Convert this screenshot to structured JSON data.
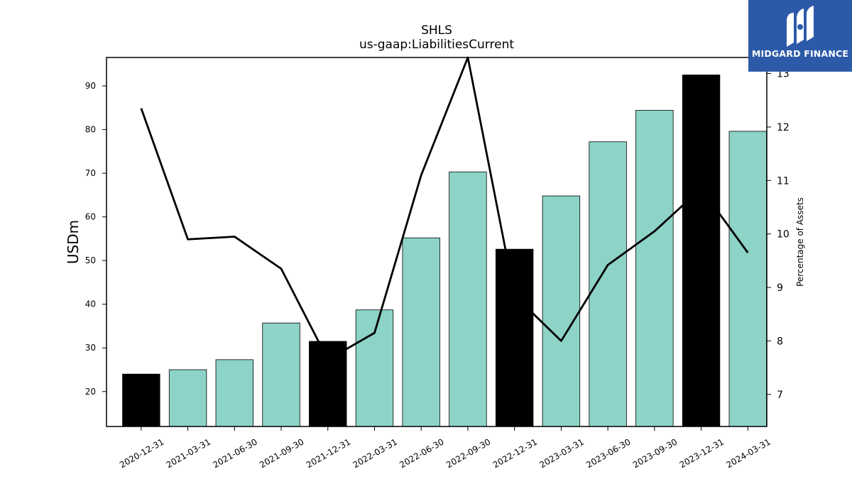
{
  "chart_data": {
    "type": "bar",
    "title": "SHLS",
    "subtitle": "us-gaap:LiabilitiesCurrent",
    "ylabel": "USDm",
    "y2label": "Percentage of Assets",
    "ylim": [
      12,
      96.5
    ],
    "y2lim": [
      6.4,
      13.3
    ],
    "yticks": [
      20,
      30,
      40,
      50,
      60,
      70,
      80,
      90
    ],
    "y2ticks": [
      7,
      8,
      9,
      10,
      11,
      12,
      13
    ],
    "categories": [
      "2020-12-31",
      "2021-03-31",
      "2021-06-30",
      "2021-09-30",
      "2021-12-31",
      "2022-03-31",
      "2022-06-30",
      "2022-09-30",
      "2022-12-31",
      "2023-03-31",
      "2023-06-30",
      "2023-09-30",
      "2023-12-31",
      "2024-03-31"
    ],
    "series": [
      {
        "kind": "bar",
        "values": [
          24.0,
          25.0,
          27.3,
          35.7,
          31.5,
          38.7,
          55.2,
          70.3,
          52.6,
          64.8,
          77.2,
          84.4,
          92.5,
          79.6
        ]
      },
      {
        "kind": "line",
        "axis": "right",
        "values": [
          12.35,
          9.9,
          9.95,
          9.35,
          7.65,
          8.15,
          11.1,
          13.3,
          8.85,
          8.0,
          9.42,
          10.05,
          10.85,
          9.65
        ]
      }
    ],
    "bar_colors": [
      "#000000",
      "#8dd3c7",
      "#8dd3c7",
      "#8dd3c7",
      "#000000",
      "#8dd3c7",
      "#8dd3c7",
      "#8dd3c7",
      "#000000",
      "#8dd3c7",
      "#8dd3c7",
      "#8dd3c7",
      "#000000",
      "#8dd3c7"
    ],
    "line_color": "#000000",
    "grid": false
  },
  "logo": {
    "text": "MIDGARD FINANCE",
    "bg": "#2c5aa9"
  }
}
